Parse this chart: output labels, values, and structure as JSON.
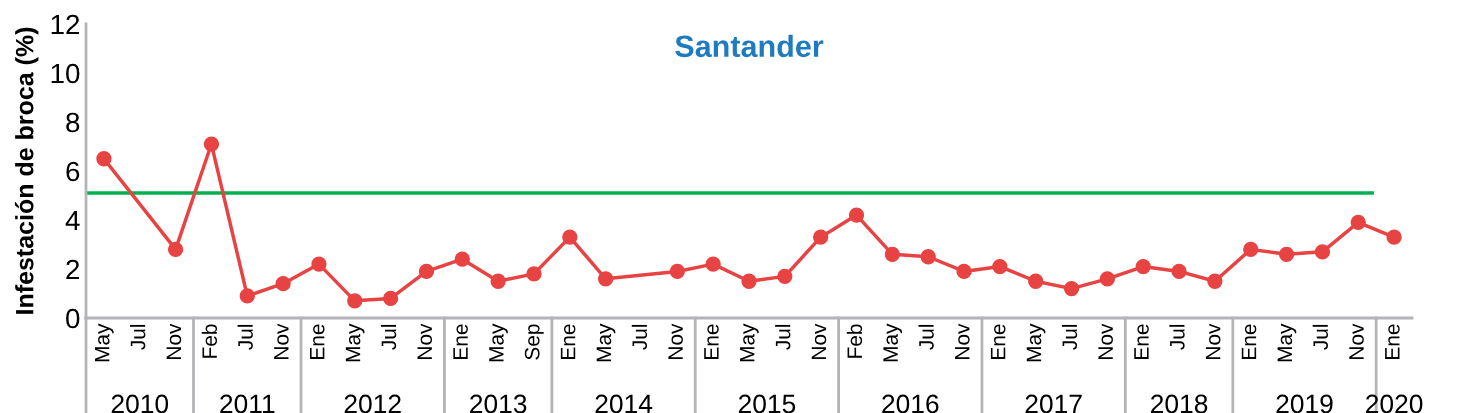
{
  "chart_data": {
    "type": "line",
    "title": "Santander",
    "ylabel": "Infestación de broca (%)",
    "categories": [
      "May",
      "Jul",
      "Nov",
      "Feb",
      "Jul",
      "Nov",
      "Ene",
      "May",
      "Jul",
      "Nov",
      "Ene",
      "May",
      "Sep",
      "Ene",
      "May",
      "Jul",
      "Nov",
      "Ene",
      "May",
      "Jul",
      "Nov",
      "Feb",
      "May",
      "Jul",
      "Nov",
      "Ene",
      "May",
      "Jul",
      "Nov",
      "Ene",
      "Jul",
      "Nov",
      "Ene",
      "May",
      "Jul",
      "Nov",
      "Ene"
    ],
    "series": [
      {
        "color": "#e84343",
        "values": [
          6.5,
          null,
          2.8,
          7.1,
          0.9,
          1.4,
          2.2,
          0.7,
          0.8,
          1.9,
          2.4,
          1.5,
          1.8,
          3.3,
          1.6,
          null,
          1.9,
          2.2,
          1.5,
          1.7,
          3.3,
          4.2,
          2.6,
          2.5,
          1.9,
          2.1,
          1.5,
          1.2,
          1.6,
          2.1,
          1.9,
          1.5,
          2.8,
          2.6,
          2.7,
          3.9,
          3.3
        ]
      }
    ],
    "ylim": [
      0,
      12
    ],
    "yticks": [
      0,
      2,
      4,
      6,
      8,
      10,
      12
    ],
    "ref_lines": [
      {
        "axis": "y",
        "value": 5.1,
        "color": "#00b050"
      }
    ],
    "annotations": [
      "2010",
      "2011",
      "2012",
      "2013",
      "2014",
      "2015",
      "2016",
      "2017",
      "2018",
      "2019",
      "2020"
    ],
    "marker": "circle",
    "grid": false
  }
}
